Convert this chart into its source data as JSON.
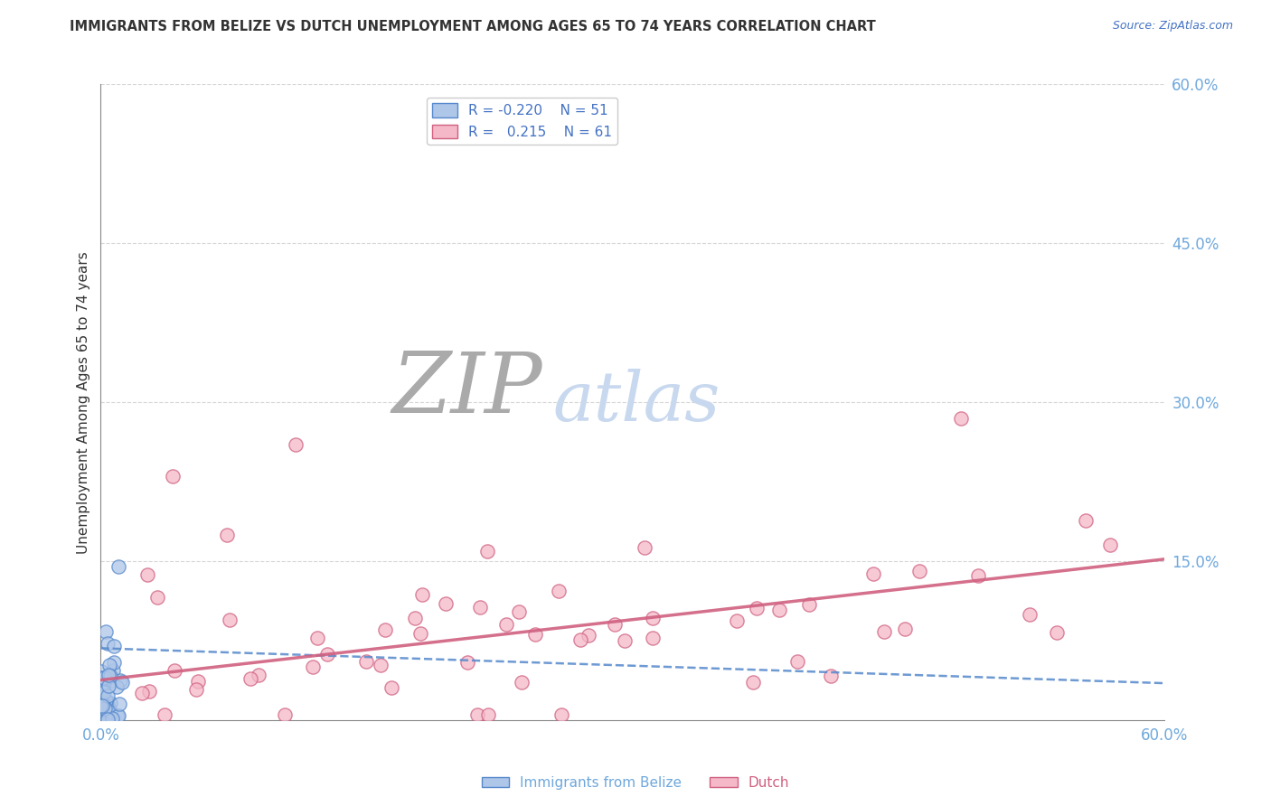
{
  "title": "IMMIGRANTS FROM BELIZE VS DUTCH UNEMPLOYMENT AMONG AGES 65 TO 74 YEARS CORRELATION CHART",
  "source_text": "Source: ZipAtlas.com",
  "ylabel": "Unemployment Among Ages 65 to 74 years",
  "xlim": [
    0.0,
    0.6
  ],
  "ylim": [
    0.0,
    0.6
  ],
  "yticks_right": [
    0.15,
    0.3,
    0.45,
    0.6
  ],
  "ytick_labels_right": [
    "15.0%",
    "30.0%",
    "45.0%",
    "60.0%"
  ],
  "blue_face": "#aec6e8",
  "blue_edge": "#5588cc",
  "pink_face": "#f4b8c8",
  "pink_edge": "#d06080",
  "trend_blue": "#5588cc",
  "trend_pink": "#d06080",
  "title_color": "#333333",
  "ylabel_color": "#333333",
  "tick_color": "#6fa8dc",
  "grid_color": "#cccccc",
  "watermark_ZIP": "#aaaaaa",
  "watermark_atlas": "#c8d8ee",
  "source_color": "#4472c4",
  "legend_label_color": "#333333",
  "legend_r_color": "#4472c4"
}
